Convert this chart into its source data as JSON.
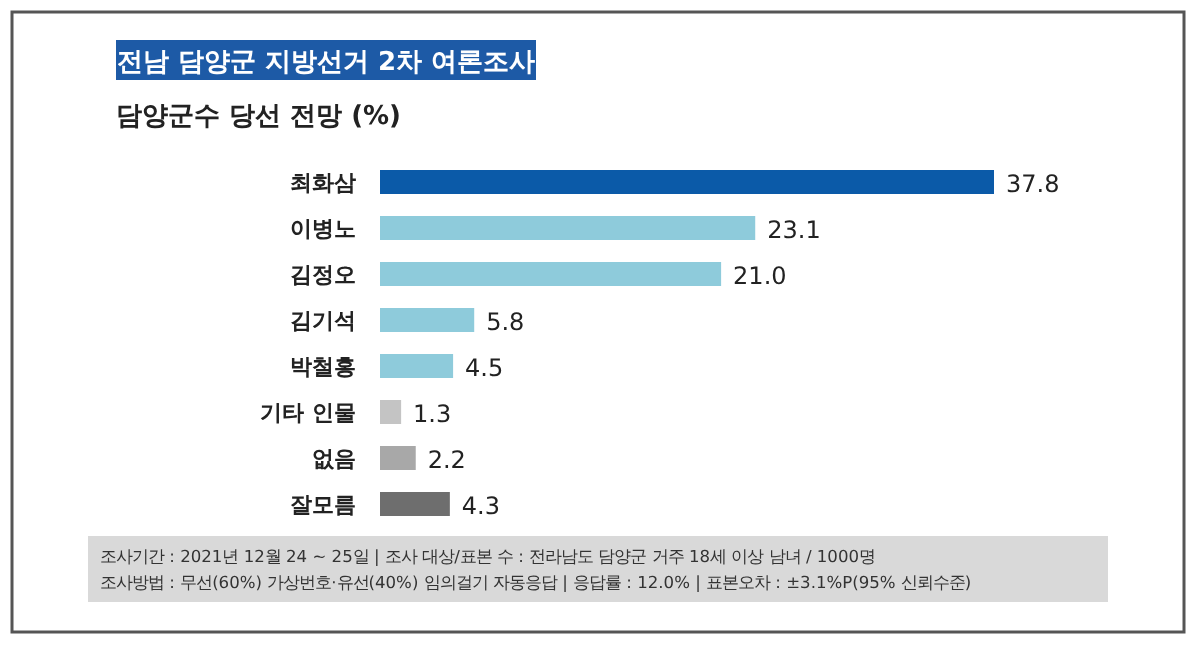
{
  "chart_data": {
    "type": "bar",
    "orientation": "horizontal",
    "title": "전남 담양군 지방선거 2차 여론조사",
    "subtitle": "담양군수 당선 전망 (%)",
    "categories": [
      "최화삼",
      "이병노",
      "김정오",
      "김기석",
      "박철홍",
      "기타 인물",
      "없음",
      "잘모름"
    ],
    "values": [
      37.8,
      23.1,
      21.0,
      5.8,
      4.5,
      1.3,
      2.2,
      4.3
    ],
    "colors": [
      "#0b5aa8",
      "#8ecbdb",
      "#8ecbdb",
      "#8ecbdb",
      "#8ecbdb",
      "#c4c4c4",
      "#a8a8a8",
      "#6e6e6e"
    ],
    "value_labels": [
      "37.8",
      "23.1",
      "21.0",
      "5.8",
      "4.5",
      "1.3",
      "2.2",
      "4.3"
    ],
    "annotations": [
      "조사기간 : 2021년 12월 24 ~ 25일 | 조사 대상/표본 수 : 전라남도 담양군 거주 18세 이상 남녀 / 1000명",
      "조사방법 : 무선(60%) 가상번호·유선(40%) 임의걸기 자동응답 | 응답률 : 12.0% | 표본오차 : ±3.1%P(95% 신뢰수준)"
    ]
  }
}
